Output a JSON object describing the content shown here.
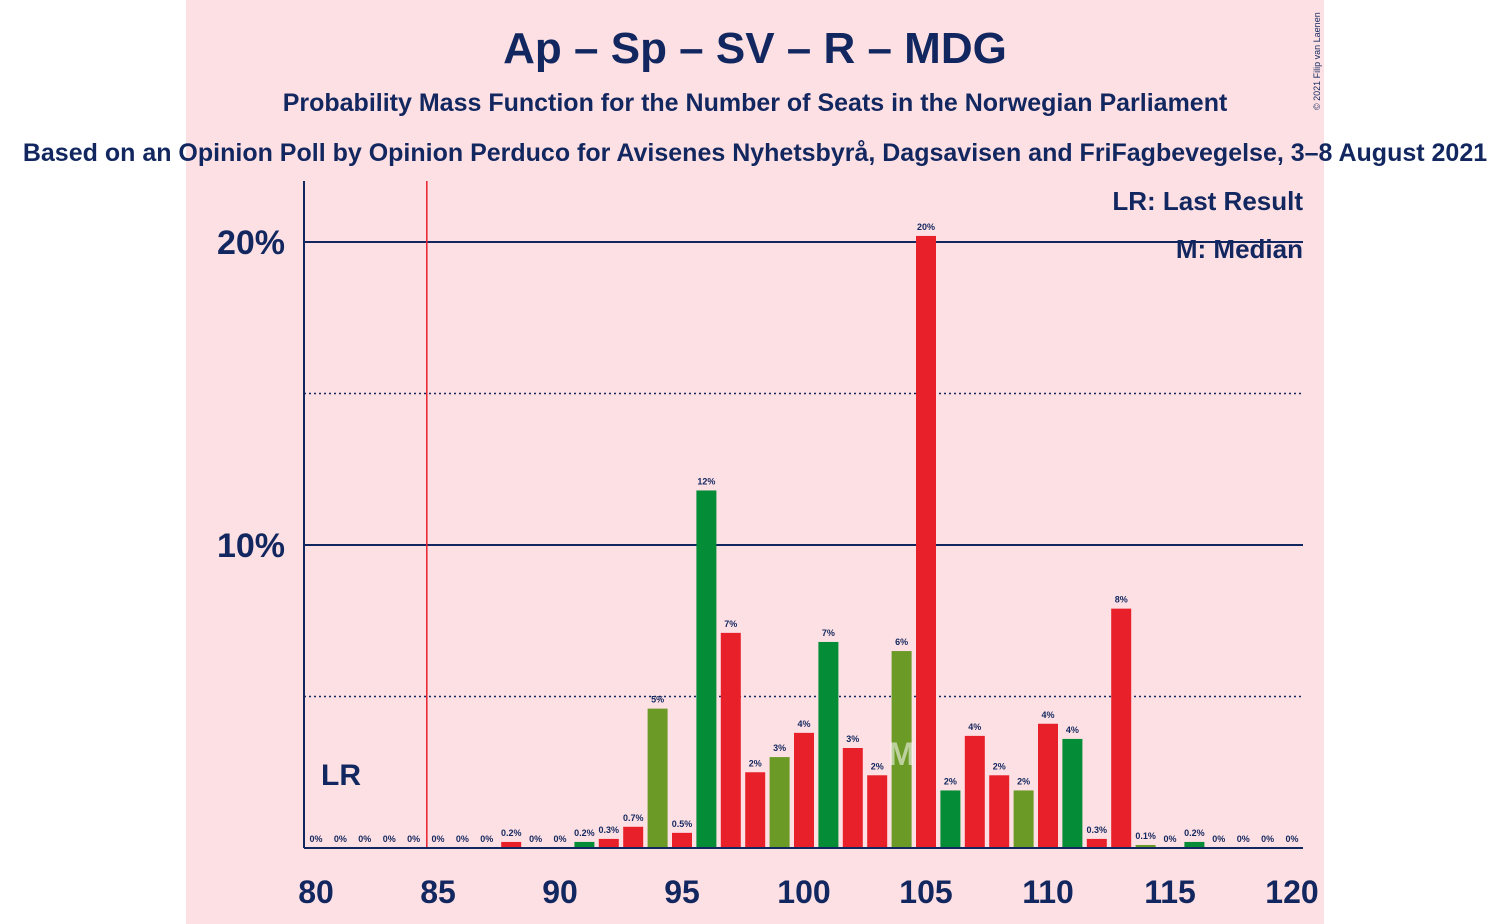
{
  "title": "Ap – Sp – SV – R – MDG",
  "subtitle": "Probability Mass Function for the Number of Seats in the Norwegian Parliament",
  "caption": "Based on an Opinion Poll by Opinion Perduco for Avisenes Nyhetsbyrå, Dagsavisen and FriFagbevegelse, 3–8 August 2021",
  "copyright": "© 2021 Filip van Laenen",
  "legend": {
    "last_result": "LR: Last Result",
    "median": "M: Median"
  },
  "colors": {
    "background": "#fde0e3",
    "text": "#12275f",
    "red": "#e8202a",
    "green": "#058c37",
    "olive": "#6b9a26",
    "lr_line": "#e8202a"
  },
  "chart_data": {
    "type": "bar",
    "xlim": [
      80,
      120
    ],
    "ylim": [
      0,
      22
    ],
    "x_ticks": [
      "80",
      "85",
      "90",
      "95",
      "100",
      "105",
      "110",
      "115",
      "120"
    ],
    "y_ticks": [
      "10%",
      "20%"
    ],
    "last_result": {
      "seats": 85,
      "label": "LR"
    },
    "median": {
      "seats": 104,
      "label": "M"
    },
    "bars": [
      {
        "seats": 80,
        "value": 0,
        "label": "0%",
        "color": "red"
      },
      {
        "seats": 81,
        "value": 0,
        "label": "0%",
        "color": "red"
      },
      {
        "seats": 82,
        "value": 0,
        "label": "0%",
        "color": "red"
      },
      {
        "seats": 83,
        "value": 0,
        "label": "0%",
        "color": "red"
      },
      {
        "seats": 84,
        "value": 0,
        "label": "0%",
        "color": "red"
      },
      {
        "seats": 85,
        "value": 0,
        "label": "0%",
        "color": "red"
      },
      {
        "seats": 86,
        "value": 0,
        "label": "0%",
        "color": "red"
      },
      {
        "seats": 87,
        "value": 0,
        "label": "0%",
        "color": "red"
      },
      {
        "seats": 88,
        "value": 0.2,
        "label": "0.2%",
        "color": "red"
      },
      {
        "seats": 89,
        "value": 0,
        "label": "0%",
        "color": "red"
      },
      {
        "seats": 90,
        "value": 0,
        "label": "0%",
        "color": "red"
      },
      {
        "seats": 91,
        "value": 0.2,
        "label": "0.2%",
        "color": "green"
      },
      {
        "seats": 92,
        "value": 0.3,
        "label": "0.3%",
        "color": "red"
      },
      {
        "seats": 93,
        "value": 0.7,
        "label": "0.7%",
        "color": "red"
      },
      {
        "seats": 94,
        "value": 4.6,
        "label": "5%",
        "color": "olive"
      },
      {
        "seats": 95,
        "value": 0.5,
        "label": "0.5%",
        "color": "red"
      },
      {
        "seats": 96,
        "value": 11.8,
        "label": "12%",
        "color": "green"
      },
      {
        "seats": 97,
        "value": 7.1,
        "label": "7%",
        "color": "red"
      },
      {
        "seats": 98,
        "value": 2.5,
        "label": "2%",
        "color": "red"
      },
      {
        "seats": 99,
        "value": 3.0,
        "label": "3%",
        "color": "olive"
      },
      {
        "seats": 100,
        "value": 3.8,
        "label": "4%",
        "color": "red"
      },
      {
        "seats": 101,
        "value": 6.8,
        "label": "7%",
        "color": "green"
      },
      {
        "seats": 102,
        "value": 3.3,
        "label": "3%",
        "color": "red"
      },
      {
        "seats": 103,
        "value": 2.4,
        "label": "2%",
        "color": "red"
      },
      {
        "seats": 104,
        "value": 6.5,
        "label": "6%",
        "color": "olive"
      },
      {
        "seats": 105,
        "value": 20.2,
        "label": "20%",
        "color": "red"
      },
      {
        "seats": 106,
        "value": 1.9,
        "label": "2%",
        "color": "green"
      },
      {
        "seats": 107,
        "value": 3.7,
        "label": "4%",
        "color": "red"
      },
      {
        "seats": 108,
        "value": 2.4,
        "label": "2%",
        "color": "red"
      },
      {
        "seats": 109,
        "value": 1.9,
        "label": "2%",
        "color": "olive"
      },
      {
        "seats": 110,
        "value": 4.1,
        "label": "4%",
        "color": "red"
      },
      {
        "seats": 111,
        "value": 3.6,
        "label": "4%",
        "color": "green"
      },
      {
        "seats": 112,
        "value": 0.3,
        "label": "0.3%",
        "color": "red"
      },
      {
        "seats": 113,
        "value": 7.9,
        "label": "8%",
        "color": "red"
      },
      {
        "seats": 114,
        "value": 0.1,
        "label": "0.1%",
        "color": "olive"
      },
      {
        "seats": 115,
        "value": 0,
        "label": "0%",
        "color": "red"
      },
      {
        "seats": 116,
        "value": 0.2,
        "label": "0.2%",
        "color": "green"
      },
      {
        "seats": 117,
        "value": 0,
        "label": "0%",
        "color": "red"
      },
      {
        "seats": 118,
        "value": 0,
        "label": "0%",
        "color": "red"
      },
      {
        "seats": 119,
        "value": 0,
        "label": "0%",
        "color": "red"
      },
      {
        "seats": 120,
        "value": 0,
        "label": "0%",
        "color": "red"
      }
    ]
  }
}
